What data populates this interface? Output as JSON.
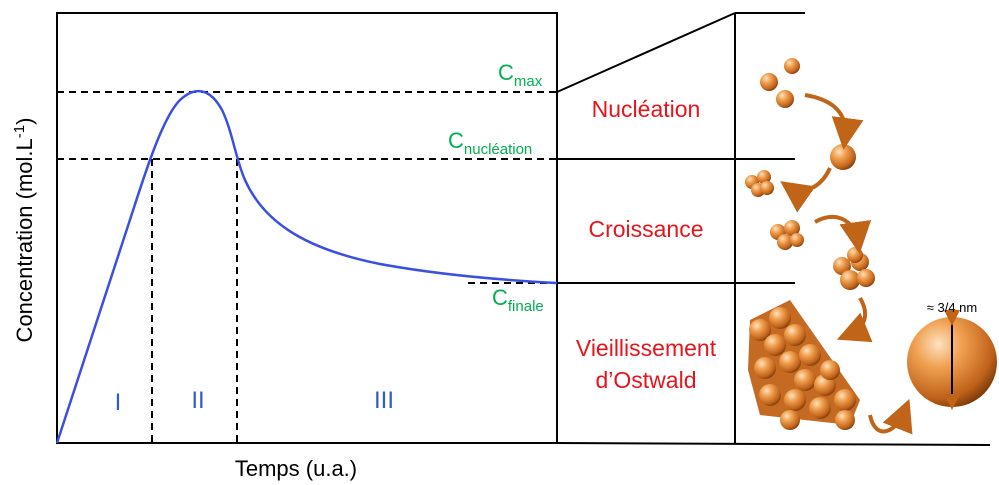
{
  "x_axis_label": "Temps (u.a.)",
  "y_axis_label": [
    "Concentration (mol.L",
    "-1",
    ")"
  ],
  "levels": [
    {
      "symbol": "C",
      "subscript": "max"
    },
    {
      "symbol": "C",
      "subscript": "nucléation"
    },
    {
      "symbol": "C",
      "subscript": "finale"
    }
  ],
  "phases": [
    "I",
    "II",
    "III"
  ],
  "stages": [
    "Nucléation",
    "Croissance",
    "Vieillissement",
    "d’Ostwald"
  ],
  "size_label": "≈ 3/4 nm"
}
